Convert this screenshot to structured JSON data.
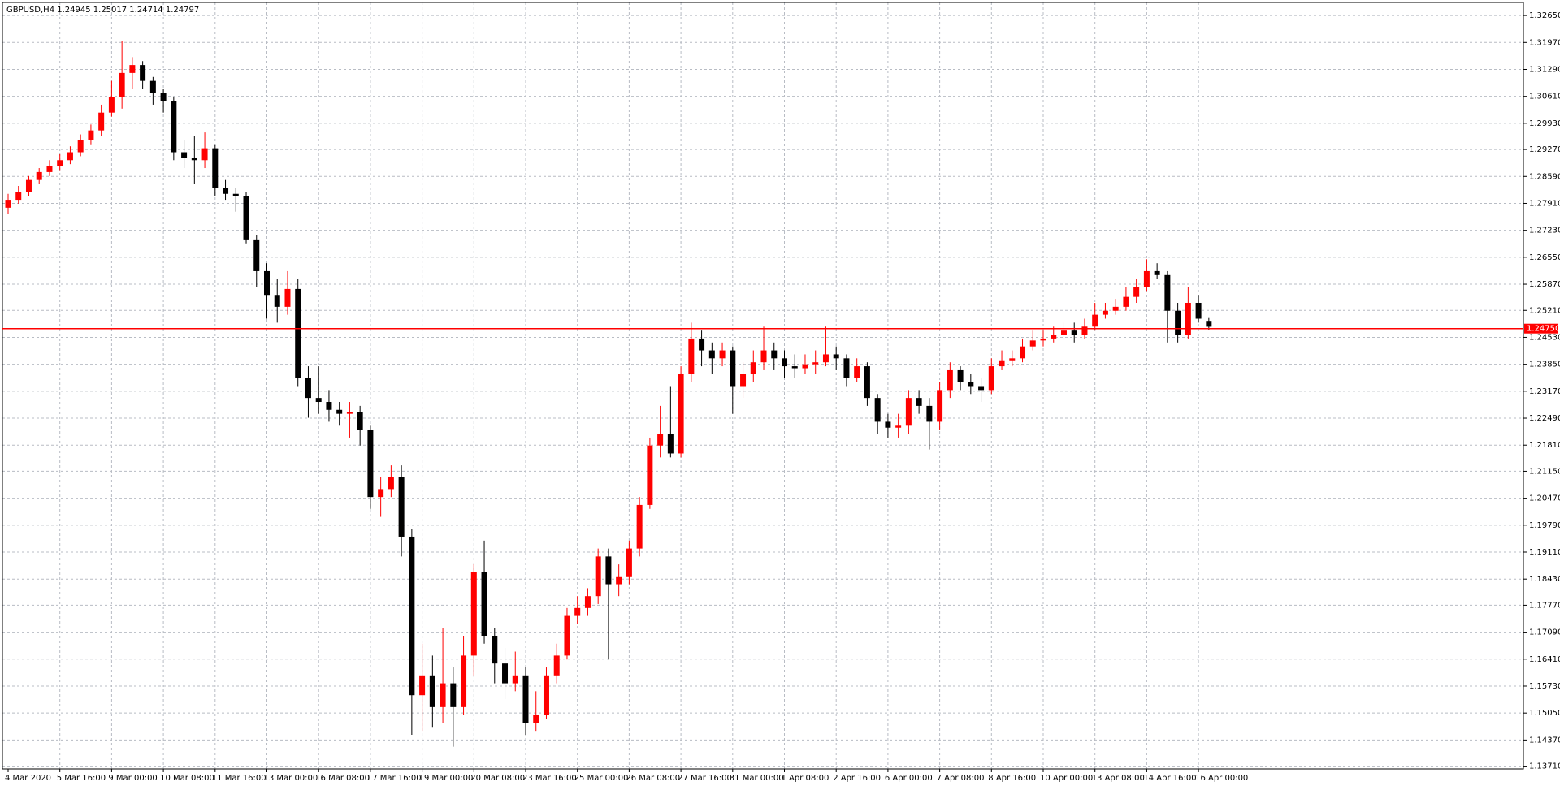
{
  "chart_data": {
    "type": "candlestick",
    "title": "GBPUSD,H4  1.24945 1.25017 1.24714 1.24797",
    "categories": [
      "4 Mar 2020",
      null,
      null,
      null,
      null,
      "5 Mar 16:00",
      null,
      null,
      null,
      null,
      "9 Mar 00:00",
      null,
      null,
      null,
      null,
      "10 Mar 08:00",
      null,
      null,
      null,
      null,
      "11 Mar 16:00",
      null,
      null,
      null,
      null,
      "13 Mar 00:00",
      null,
      null,
      null,
      null,
      "16 Mar 08:00",
      null,
      null,
      null,
      null,
      "17 Mar 16:00",
      null,
      null,
      null,
      null,
      "19 Mar 00:00",
      null,
      null,
      null,
      null,
      "20 Mar 08:00",
      null,
      null,
      null,
      null,
      "23 Mar 16:00",
      null,
      null,
      null,
      null,
      "25 Mar 00:00",
      null,
      null,
      null,
      null,
      "26 Mar 08:00",
      null,
      null,
      null,
      null,
      "27 Mar 16:00",
      null,
      null,
      null,
      null,
      "31 Mar 00:00",
      null,
      null,
      null,
      null,
      "1 Apr 08:00",
      null,
      null,
      null,
      null,
      "2 Apr 16:00",
      null,
      null,
      null,
      null,
      "6 Apr 00:00",
      null,
      null,
      null,
      null,
      "7 Apr 08:00",
      null,
      null,
      null,
      null,
      "8 Apr 16:00",
      null,
      null,
      null,
      null,
      "10 Apr 00:00",
      null,
      null,
      null,
      null,
      "13 Apr 08:00",
      null,
      null,
      null,
      null,
      "14 Apr 16:00",
      null,
      null,
      null,
      null,
      "16 Apr 00:00",
      null
    ],
    "open": [
      1.278,
      1.28,
      1.282,
      1.285,
      1.287,
      1.2885,
      1.29,
      1.292,
      1.295,
      1.2975,
      1.302,
      1.306,
      1.312,
      1.314,
      1.31,
      1.307,
      1.305,
      1.292,
      1.2905,
      1.29,
      1.293,
      1.283,
      1.2815,
      1.281,
      1.27,
      1.262,
      1.256,
      1.253,
      1.2575,
      1.235,
      1.23,
      1.229,
      1.227,
      1.226,
      1.2265,
      1.222,
      1.205,
      1.207,
      1.21,
      1.195,
      1.155,
      1.16,
      1.152,
      1.158,
      1.152,
      1.165,
      1.186,
      1.17,
      1.163,
      1.158,
      1.16,
      1.148,
      1.15,
      1.16,
      1.165,
      1.175,
      1.177,
      1.18,
      1.19,
      1.183,
      1.185,
      1.192,
      1.203,
      1.218,
      1.221,
      1.216,
      1.236,
      1.245,
      1.242,
      1.24,
      1.242,
      1.233,
      1.236,
      1.239,
      1.242,
      1.24,
      1.238,
      1.2375,
      1.2385,
      1.239,
      1.241,
      1.24,
      1.235,
      1.238,
      1.23,
      1.224,
      1.2225,
      1.223,
      1.23,
      1.228,
      1.224,
      1.232,
      1.237,
      1.234,
      1.233,
      1.232,
      1.238,
      1.2395,
      1.24,
      1.243,
      1.2445,
      1.245,
      1.246,
      1.247,
      1.246,
      1.248,
      1.251,
      1.252,
      1.253,
      1.2555,
      1.258,
      1.262,
      1.261,
      1.252,
      1.246,
      1.254,
      1.24945
    ],
    "high": [
      1.2815,
      1.2835,
      1.286,
      1.288,
      1.29,
      1.2915,
      1.2935,
      1.2965,
      1.299,
      1.304,
      1.31,
      1.32,
      1.316,
      1.315,
      1.311,
      1.308,
      1.306,
      1.295,
      1.296,
      1.297,
      1.294,
      1.285,
      1.283,
      1.282,
      1.271,
      1.264,
      1.26,
      1.262,
      1.26,
      1.238,
      1.238,
      1.232,
      1.229,
      1.229,
      1.228,
      1.223,
      1.21,
      1.213,
      1.213,
      1.197,
      1.168,
      1.165,
      1.172,
      1.162,
      1.17,
      1.188,
      1.194,
      1.172,
      1.167,
      1.166,
      1.162,
      1.156,
      1.162,
      1.168,
      1.177,
      1.18,
      1.182,
      1.192,
      1.192,
      1.188,
      1.194,
      1.205,
      1.22,
      1.228,
      1.233,
      1.238,
      1.249,
      1.247,
      1.244,
      1.244,
      1.243,
      1.239,
      1.242,
      1.248,
      1.244,
      1.242,
      1.241,
      1.241,
      1.242,
      1.248,
      1.243,
      1.241,
      1.24,
      1.239,
      1.231,
      1.226,
      1.226,
      1.232,
      1.232,
      1.23,
      1.234,
      1.239,
      1.238,
      1.236,
      1.235,
      1.24,
      1.242,
      1.242,
      1.245,
      1.247,
      1.247,
      1.248,
      1.249,
      1.249,
      1.25,
      1.254,
      1.254,
      1.255,
      1.258,
      1.26,
      1.265,
      1.264,
      1.262,
      1.254,
      1.258,
      1.256,
      1.25017
    ],
    "low": [
      1.2765,
      1.279,
      1.281,
      1.284,
      1.286,
      1.2875,
      1.289,
      1.291,
      1.294,
      1.296,
      1.301,
      1.303,
      1.308,
      1.308,
      1.304,
      1.302,
      1.29,
      1.288,
      1.284,
      1.288,
      1.281,
      1.28,
      1.277,
      1.269,
      1.258,
      1.25,
      1.249,
      1.251,
      1.233,
      1.225,
      1.226,
      1.224,
      1.223,
      1.22,
      1.218,
      1.202,
      1.2,
      1.205,
      1.19,
      1.145,
      1.146,
      1.147,
      1.148,
      1.142,
      1.15,
      1.16,
      1.168,
      1.158,
      1.154,
      1.156,
      1.145,
      1.146,
      1.149,
      1.158,
      1.164,
      1.173,
      1.175,
      1.178,
      1.164,
      1.18,
      1.183,
      1.19,
      1.202,
      1.215,
      1.215,
      1.215,
      1.234,
      1.238,
      1.236,
      1.238,
      1.226,
      1.23,
      1.234,
      1.237,
      1.237,
      1.235,
      1.235,
      1.236,
      1.236,
      1.238,
      1.237,
      1.233,
      1.234,
      1.228,
      1.221,
      1.22,
      1.22,
      1.221,
      1.226,
      1.217,
      1.222,
      1.23,
      1.232,
      1.231,
      1.229,
      1.231,
      1.237,
      1.238,
      1.239,
      1.242,
      1.243,
      1.244,
      1.245,
      1.244,
      1.245,
      1.247,
      1.25,
      1.251,
      1.252,
      1.254,
      1.257,
      1.26,
      1.244,
      1.244,
      1.245,
      1.249,
      1.24714
    ],
    "close": [
      1.28,
      1.282,
      1.285,
      1.287,
      1.2885,
      1.29,
      1.292,
      1.295,
      1.2975,
      1.302,
      1.306,
      1.312,
      1.314,
      1.31,
      1.307,
      1.305,
      1.292,
      1.2905,
      1.29,
      1.293,
      1.283,
      1.2815,
      1.281,
      1.27,
      1.262,
      1.256,
      1.253,
      1.2575,
      1.235,
      1.23,
      1.229,
      1.227,
      1.226,
      1.2265,
      1.222,
      1.205,
      1.207,
      1.21,
      1.195,
      1.155,
      1.16,
      1.152,
      1.158,
      1.152,
      1.165,
      1.186,
      1.17,
      1.163,
      1.158,
      1.16,
      1.148,
      1.15,
      1.16,
      1.165,
      1.175,
      1.177,
      1.18,
      1.19,
      1.183,
      1.185,
      1.192,
      1.203,
      1.218,
      1.221,
      1.216,
      1.236,
      1.245,
      1.242,
      1.24,
      1.242,
      1.233,
      1.236,
      1.239,
      1.242,
      1.24,
      1.238,
      1.2375,
      1.2385,
      1.239,
      1.241,
      1.24,
      1.235,
      1.238,
      1.23,
      1.224,
      1.2225,
      1.223,
      1.23,
      1.228,
      1.224,
      1.232,
      1.237,
      1.234,
      1.233,
      1.232,
      1.238,
      1.2395,
      1.24,
      1.243,
      1.2445,
      1.245,
      1.246,
      1.247,
      1.246,
      1.248,
      1.251,
      1.252,
      1.253,
      1.2555,
      1.258,
      1.262,
      1.261,
      1.252,
      1.246,
      1.254,
      1.25,
      1.24797
    ],
    "up_color": "#ff0000",
    "down_color": "#000000",
    "ylim": [
      1.1364,
      1.3298
    ],
    "yticks": [
      {
        "value": 1.3265,
        "label": "1.32650"
      },
      {
        "value": 1.3197,
        "label": "1.31970"
      },
      {
        "value": 1.3129,
        "label": "1.31290"
      },
      {
        "value": 1.3061,
        "label": "1.30610"
      },
      {
        "value": 1.2993,
        "label": "1.29930"
      },
      {
        "value": 1.2927,
        "label": "1.29270"
      },
      {
        "value": 1.2859,
        "label": "1.28590"
      },
      {
        "value": 1.2791,
        "label": "1.27910"
      },
      {
        "value": 1.2723,
        "label": "1.27230"
      },
      {
        "value": 1.2655,
        "label": "1.26550"
      },
      {
        "value": 1.2587,
        "label": "1.25870"
      },
      {
        "value": 1.2521,
        "label": "1.25210"
      },
      {
        "value": 1.2453,
        "label": "1.24530"
      },
      {
        "value": 1.2385,
        "label": "1.23850"
      },
      {
        "value": 1.2317,
        "label": "1.23170"
      },
      {
        "value": 1.2249,
        "label": "1.22490"
      },
      {
        "value": 1.2181,
        "label": "1.21810"
      },
      {
        "value": 1.2115,
        "label": "1.21150"
      },
      {
        "value": 1.2047,
        "label": "1.20470"
      },
      {
        "value": 1.1979,
        "label": "1.19790"
      },
      {
        "value": 1.1911,
        "label": "1.19110"
      },
      {
        "value": 1.1843,
        "label": "1.18430"
      },
      {
        "value": 1.1777,
        "label": "1.17770"
      },
      {
        "value": 1.1709,
        "label": "1.17090"
      },
      {
        "value": 1.1641,
        "label": "1.16410"
      },
      {
        "value": 1.1573,
        "label": "1.15730"
      },
      {
        "value": 1.1505,
        "label": "1.15050"
      },
      {
        "value": 1.1437,
        "label": "1.14370"
      },
      {
        "value": 1.1371,
        "label": "1.13710"
      }
    ],
    "grid": true,
    "price_line": {
      "value": 1.2475,
      "label": "1.24750",
      "color": "#ff0000"
    }
  }
}
